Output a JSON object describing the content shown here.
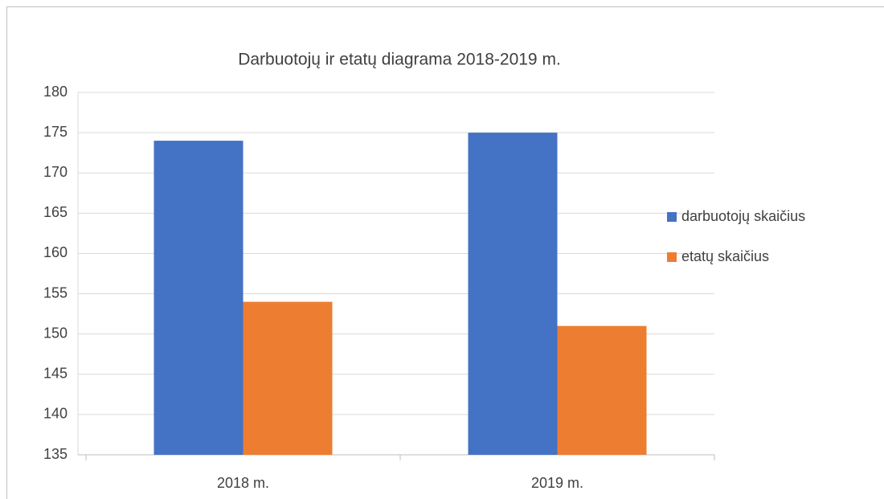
{
  "chart_data": {
    "type": "bar",
    "title": "Darbuotojų ir etatų diagrama 2018-2019 m.",
    "categories": [
      "2018 m.",
      "2019 m."
    ],
    "series": [
      {
        "name": "darbuotojų skaičius",
        "color": "#4472c4",
        "values": [
          174,
          175
        ]
      },
      {
        "name": "etatų skaičius",
        "color": "#ed7d31",
        "values": [
          154,
          151
        ]
      }
    ],
    "ylim": [
      135,
      180
    ],
    "yticks": [
      135,
      140,
      145,
      150,
      155,
      160,
      165,
      170,
      175,
      180
    ],
    "grid": true,
    "legend": "right"
  }
}
